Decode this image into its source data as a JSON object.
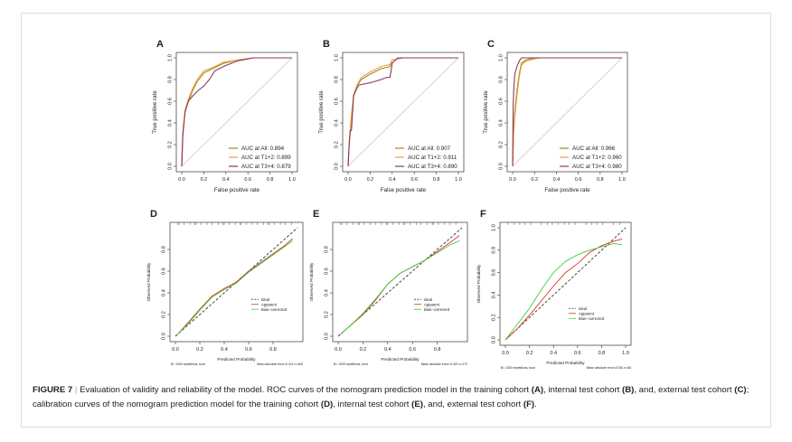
{
  "caption": {
    "label": "FIGURE 7",
    "separator": "|",
    "part1": " Evaluation of validity and reliability of the model. ROC curves of the nomogram prediction model in the training cohort ",
    "ref_a": "(A)",
    "part2": ", internal test cohort ",
    "ref_b": "(B)",
    "part3": ", and, external test cohort ",
    "ref_c": "(C)",
    "part4": "; calibration curves of the nomogram prediction model for the training cohort ",
    "ref_d": "(D)",
    "part5": ", internal test cohort ",
    "ref_e": "(E)",
    "part6": ", and, external test cohort ",
    "ref_f": "(F)",
    "part7": "."
  },
  "colors": {
    "auc_all": "#9a8c2a",
    "auc_t12": "#f0a040",
    "auc_t34": "#8a3a5a",
    "ideal": "#333333",
    "apparent": "#e0302a",
    "bias_corrected": "#3ad23a",
    "diagonal": "#c8c8c8"
  },
  "chart_data": [
    {
      "panel": "A",
      "type": "line",
      "title": "",
      "xlabel": "False positive rate",
      "ylabel": "True positive rate",
      "xlim": [
        0,
        1
      ],
      "ylim": [
        0,
        1
      ],
      "ticks": [
        "0.0",
        "0.2",
        "0.4",
        "0.6",
        "0.8",
        "1.0"
      ],
      "legend_position": "bottom-right",
      "series": [
        {
          "name": "AUC at All: 0.894",
          "color_key": "auc_all",
          "x": [
            0,
            0.01,
            0.03,
            0.06,
            0.1,
            0.14,
            0.2,
            0.28,
            0.38,
            0.5,
            0.65,
            0.8,
            1
          ],
          "y": [
            0,
            0.3,
            0.5,
            0.6,
            0.7,
            0.78,
            0.86,
            0.9,
            0.95,
            0.98,
            1,
            1,
            1
          ]
        },
        {
          "name": "AUC at T1+2: 0.899",
          "color_key": "auc_t12",
          "x": [
            0,
            0.01,
            0.03,
            0.06,
            0.1,
            0.14,
            0.2,
            0.28,
            0.38,
            0.5,
            0.65,
            0.8,
            1
          ],
          "y": [
            0,
            0.32,
            0.52,
            0.62,
            0.72,
            0.8,
            0.88,
            0.91,
            0.96,
            0.98,
            1,
            1,
            1
          ]
        },
        {
          "name": "AUC at T3+4: 0.879",
          "color_key": "auc_t34",
          "x": [
            0,
            0.01,
            0.03,
            0.06,
            0.1,
            0.15,
            0.2,
            0.25,
            0.3,
            0.4,
            0.5,
            0.65,
            1
          ],
          "y": [
            0,
            0.28,
            0.5,
            0.6,
            0.65,
            0.7,
            0.74,
            0.8,
            0.88,
            0.93,
            0.97,
            1,
            1
          ]
        }
      ]
    },
    {
      "panel": "B",
      "type": "line",
      "title": "",
      "xlabel": "False positive rate",
      "ylabel": "True positive rate",
      "xlim": [
        0,
        1
      ],
      "ylim": [
        0,
        1
      ],
      "ticks": [
        "0.0",
        "0.2",
        "0.4",
        "0.6",
        "0.8",
        "1.0"
      ],
      "legend_position": "bottom-right",
      "series": [
        {
          "name": "AUC at All: 0.907",
          "color_key": "auc_all",
          "x": [
            0,
            0.01,
            0.03,
            0.05,
            0.08,
            0.12,
            0.2,
            0.3,
            0.38,
            0.4,
            0.5,
            1
          ],
          "y": [
            0,
            0.2,
            0.45,
            0.65,
            0.74,
            0.8,
            0.85,
            0.9,
            0.92,
            0.98,
            1,
            1
          ]
        },
        {
          "name": "AUC at T1+2: 0.911",
          "color_key": "auc_t12",
          "x": [
            0,
            0.01,
            0.03,
            0.05,
            0.08,
            0.12,
            0.2,
            0.3,
            0.38,
            0.4,
            0.5,
            1
          ],
          "y": [
            0,
            0.22,
            0.47,
            0.66,
            0.75,
            0.82,
            0.87,
            0.92,
            0.94,
            0.98,
            1,
            1
          ]
        },
        {
          "name": "AUC at T3+4: 0.890",
          "color_key": "auc_t34",
          "x": [
            0,
            0.01,
            0.02,
            0.03,
            0.05,
            0.08,
            0.1,
            0.2,
            0.3,
            0.35,
            0.38,
            0.4,
            0.45,
            1
          ],
          "y": [
            0,
            0.2,
            0.33,
            0.33,
            0.65,
            0.72,
            0.75,
            0.77,
            0.8,
            0.82,
            0.82,
            0.95,
            1,
            1
          ]
        }
      ]
    },
    {
      "panel": "C",
      "type": "line",
      "title": "",
      "xlabel": "False positive rate",
      "ylabel": "True positive rate",
      "xlim": [
        0,
        1
      ],
      "ylim": [
        0,
        1
      ],
      "ticks": [
        "0.0",
        "0.2",
        "0.4",
        "0.6",
        "0.8",
        "1.0"
      ],
      "legend_position": "bottom-right",
      "series": [
        {
          "name": "AUC at All: 0.966",
          "color_key": "auc_all",
          "x": [
            0,
            0.01,
            0.02,
            0.04,
            0.06,
            0.08,
            0.12,
            0.2,
            1
          ],
          "y": [
            0,
            0.35,
            0.5,
            0.7,
            0.85,
            0.95,
            0.98,
            1,
            1
          ]
        },
        {
          "name": "AUC at T1+2: 0.960",
          "color_key": "auc_t12",
          "x": [
            0,
            0.01,
            0.02,
            0.04,
            0.06,
            0.08,
            0.12,
            0.2,
            0.25,
            1
          ],
          "y": [
            0,
            0.3,
            0.45,
            0.65,
            0.82,
            0.93,
            0.97,
            0.99,
            1,
            1
          ]
        },
        {
          "name": "AUC at T3+4: 0.980",
          "color_key": "auc_t34",
          "x": [
            0,
            0.005,
            0.01,
            0.02,
            0.04,
            0.06,
            0.08,
            0.1,
            1
          ],
          "y": [
            0,
            0.55,
            0.7,
            0.85,
            0.92,
            0.97,
            1,
            1,
            1
          ]
        }
      ]
    },
    {
      "panel": "D",
      "type": "line",
      "title": "",
      "xlabel": "Predicted Probability",
      "ylabel": "Observed Probability",
      "xlim": [
        0,
        1
      ],
      "ylim": [
        0,
        1
      ],
      "ticks": [
        "0.0",
        "0.2",
        "0.4",
        "0.6",
        "0.8"
      ],
      "legend_position": "bottom-center",
      "footer_left": "B= 1000 repetitions, boot",
      "footer_right": "Mean absolute error=0.011 n=406",
      "series": [
        {
          "name": "Ideal",
          "color_key": "ideal",
          "dashed": true,
          "x": [
            0,
            1
          ],
          "y": [
            0,
            1
          ]
        },
        {
          "name": "Apparent",
          "color_key": "apparent",
          "x": [
            0.02,
            0.1,
            0.2,
            0.3,
            0.4,
            0.5,
            0.6,
            0.7,
            0.8,
            0.9,
            0.96
          ],
          "y": [
            0.02,
            0.12,
            0.25,
            0.37,
            0.44,
            0.5,
            0.6,
            0.68,
            0.76,
            0.84,
            0.9
          ]
        },
        {
          "name": "Bias−corrected",
          "color_key": "bias_corrected",
          "x": [
            0.02,
            0.1,
            0.2,
            0.3,
            0.4,
            0.5,
            0.6,
            0.7,
            0.8,
            0.9,
            0.96
          ],
          "y": [
            0.02,
            0.11,
            0.24,
            0.36,
            0.43,
            0.49,
            0.59,
            0.67,
            0.75,
            0.83,
            0.88
          ]
        }
      ]
    },
    {
      "panel": "E",
      "type": "line",
      "title": "",
      "xlabel": "Predicted Probability",
      "ylabel": "Observed Probability",
      "xlim": [
        0,
        1
      ],
      "ylim": [
        0,
        1
      ],
      "ticks": [
        "0.0",
        "0.2",
        "0.4",
        "0.6",
        "0.8"
      ],
      "legend_position": "bottom-center",
      "footer_left": "B= 1000 repetitions, boot",
      "footer_right": "Mean absolute error=0.020 n=172",
      "series": [
        {
          "name": "Ideal",
          "color_key": "ideal",
          "dashed": true,
          "x": [
            0,
            1
          ],
          "y": [
            0,
            1
          ]
        },
        {
          "name": "Apparent",
          "color_key": "apparent",
          "x": [
            0.02,
            0.1,
            0.2,
            0.3,
            0.4,
            0.5,
            0.6,
            0.7,
            0.8,
            0.9,
            0.98
          ],
          "y": [
            0.02,
            0.1,
            0.2,
            0.33,
            0.48,
            0.58,
            0.64,
            0.7,
            0.78,
            0.86,
            0.93
          ]
        },
        {
          "name": "Bias−corrected",
          "color_key": "bias_corrected",
          "x": [
            0.02,
            0.1,
            0.2,
            0.3,
            0.4,
            0.5,
            0.6,
            0.7,
            0.8,
            0.9,
            0.98
          ],
          "y": [
            0.02,
            0.1,
            0.21,
            0.34,
            0.48,
            0.58,
            0.64,
            0.7,
            0.77,
            0.84,
            0.88
          ]
        }
      ]
    },
    {
      "panel": "F",
      "type": "line",
      "title": "",
      "xlabel": "Predicted Probability",
      "ylabel": "Observed Probability",
      "xlim": [
        0,
        1
      ],
      "ylim": [
        0,
        1
      ],
      "ticks": [
        "0.0",
        "0.2",
        "0.4",
        "0.6",
        "0.8",
        "1.0"
      ],
      "legend_position": "center-right",
      "footer_left": "B= 1000 repetitions, boot",
      "footer_right": "Mean absolute error=0.051 n=86",
      "series": [
        {
          "name": "Ideal",
          "color_key": "ideal",
          "dashed": true,
          "x": [
            0,
            1
          ],
          "y": [
            0,
            1
          ]
        },
        {
          "name": "Apparent",
          "color_key": "apparent",
          "x": [
            0,
            0.1,
            0.2,
            0.3,
            0.4,
            0.5,
            0.6,
            0.7,
            0.8,
            0.9,
            0.97
          ],
          "y": [
            0,
            0.1,
            0.22,
            0.35,
            0.48,
            0.6,
            0.68,
            0.78,
            0.84,
            0.88,
            0.9
          ]
        },
        {
          "name": "Bias−corrected",
          "color_key": "bias_corrected",
          "x": [
            0,
            0.1,
            0.2,
            0.3,
            0.4,
            0.5,
            0.6,
            0.7,
            0.8,
            0.9,
            0.97
          ],
          "y": [
            0,
            0.14,
            0.28,
            0.45,
            0.6,
            0.7,
            0.76,
            0.8,
            0.83,
            0.86,
            0.85
          ]
        }
      ]
    }
  ]
}
